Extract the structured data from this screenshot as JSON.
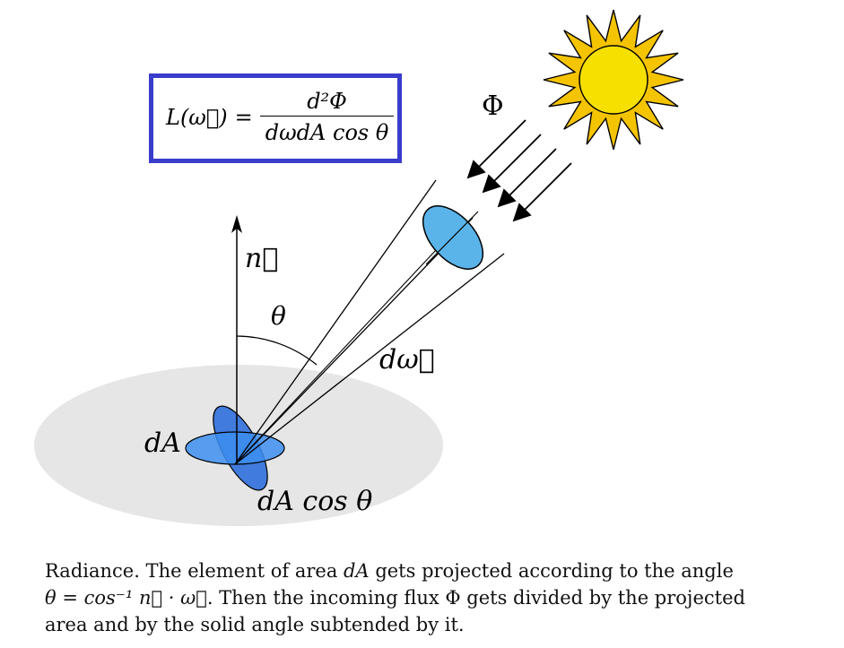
{
  "formula": {
    "lhs": "L(ω⃗)",
    "eq": "=",
    "numerator": "d²Φ",
    "denominator": "dωdA cos θ"
  },
  "labels": {
    "flux": "Φ",
    "normal": "n⃗",
    "theta": "θ",
    "solid_angle": "dω⃗",
    "area": "dA",
    "projected_area": "dA cos θ"
  },
  "caption": {
    "line1_pre": "Radiance. The element of area ",
    "line1_var": "dA",
    "line1_post": " gets projected according to the angle",
    "line2_math": "θ = cos⁻¹ n⃗ · ω⃗",
    "line2_post": ". Then the incoming flux Φ gets divided by the projected",
    "line3": "area and by the solid angle subtended by it."
  },
  "colors": {
    "box_border": "#3a3ccc",
    "surface": "#e6e6e6",
    "area_patch": "#3d8ef0",
    "projected_patch": "#2f6fdc",
    "cone_disk": "#5ab4ea",
    "sun_rays": "#f5c400",
    "sun_core": "#f6e000"
  }
}
